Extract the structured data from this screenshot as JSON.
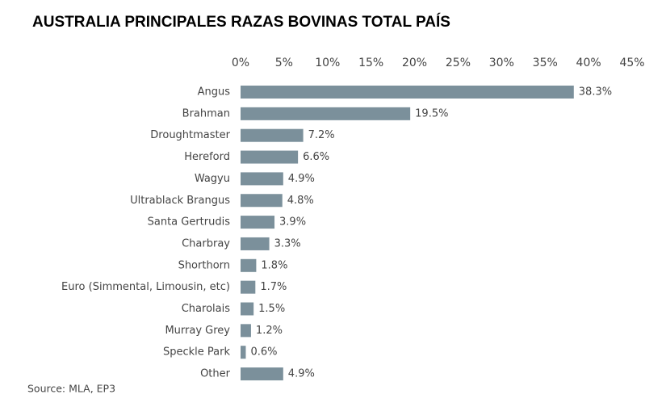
{
  "chart_data": {
    "type": "barh",
    "title": "AUSTRALIA  PRINCIPALES RAZAS BOVINAS  TOTAL PAÍS",
    "categories": [
      "Angus",
      "Brahman",
      "Droughtmaster",
      "Hereford",
      "Wagyu",
      "Ultrablack Brangus",
      "Santa Gertrudis",
      "Charbray",
      "Shorthorn",
      "Euro (Simmental, Limousin, etc)",
      "Charolais",
      "Murray Grey",
      "Speckle Park",
      "Other"
    ],
    "values": [
      38.3,
      19.5,
      7.2,
      6.6,
      4.9,
      4.8,
      3.9,
      3.3,
      1.8,
      1.7,
      1.5,
      1.2,
      0.6,
      4.9
    ],
    "value_labels": [
      "38.3%",
      "19.5%",
      "7.2%",
      "6.6%",
      "4.9%",
      "4.8%",
      "3.9%",
      "3.3%",
      "1.8%",
      "1.7%",
      "1.5%",
      "1.2%",
      "0.6%",
      "4.9%"
    ],
    "color": "#7b909b",
    "xlim": [
      0,
      45
    ],
    "xticks": [
      {
        "value": 0,
        "label": "0%"
      },
      {
        "value": 5,
        "label": "5%"
      },
      {
        "value": 10,
        "label": "10%"
      },
      {
        "value": 15,
        "label": "15%"
      },
      {
        "value": 20,
        "label": "20%"
      },
      {
        "value": 25,
        "label": "25%"
      },
      {
        "value": 30,
        "label": "30%"
      },
      {
        "value": 35,
        "label": "35%"
      },
      {
        "value": 40,
        "label": "40%"
      },
      {
        "value": 45,
        "label": "45%"
      }
    ],
    "grid": false,
    "source": "Source: MLA, EP3"
  }
}
